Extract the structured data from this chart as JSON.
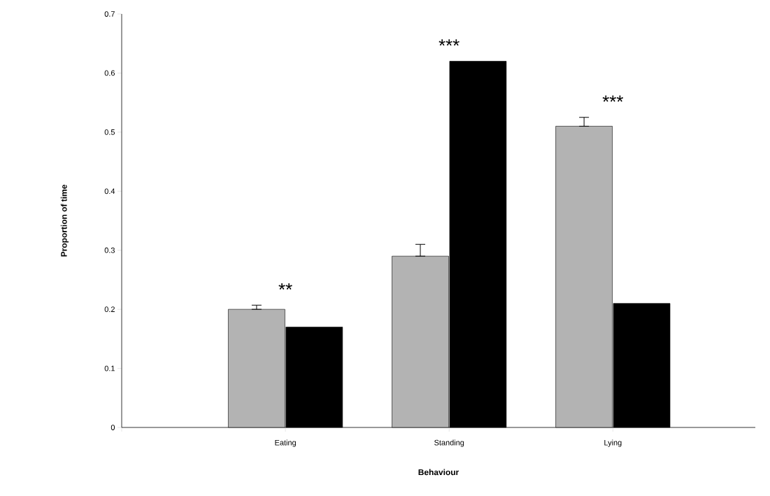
{
  "chart_data": {
    "type": "bar",
    "xlabel": "Behaviour",
    "ylabel": "Proportion of time",
    "categories": [
      "Eating",
      "Standing",
      "Lying"
    ],
    "series": [
      {
        "color": "#b3b3b3",
        "values": [
          0.2,
          0.29,
          0.51
        ],
        "errors": [
          [
            0.2,
            0.207
          ],
          [
            0.29,
            0.31
          ],
          [
            0.51,
            0.525
          ]
        ]
      },
      {
        "color": "#000000",
        "values": [
          0.17,
          0.62,
          0.21
        ]
      }
    ],
    "ylim": [
      0,
      0.7
    ],
    "yticks": [
      0,
      0.1,
      0.2,
      0.3,
      0.4,
      0.5,
      0.6,
      0.7
    ],
    "annotations": [
      "**",
      "***",
      "***"
    ]
  }
}
